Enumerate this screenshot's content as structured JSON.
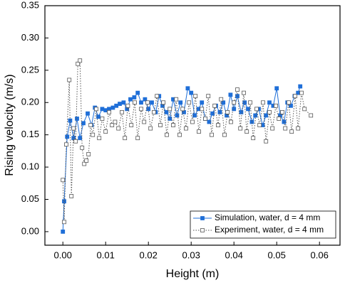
{
  "chart_data": {
    "type": "line",
    "xlabel": "Height (m)",
    "ylabel": "Rising velocity (m/s)",
    "xlim": [
      -0.0042,
      0.0648
    ],
    "ylim": [
      -0.021,
      0.35
    ],
    "xticks": [
      {
        "value": 0,
        "label": "0.00"
      },
      {
        "value": 0.01,
        "label": "0.01"
      },
      {
        "value": 0.02,
        "label": "0.02"
      },
      {
        "value": 0.03,
        "label": "0.03"
      },
      {
        "value": 0.04,
        "label": "0.04"
      },
      {
        "value": 0.05,
        "label": "0.05"
      },
      {
        "value": 0.06,
        "label": "0.06"
      }
    ],
    "yticks": [
      {
        "value": 0,
        "label": "0.00"
      },
      {
        "value": 0.05,
        "label": "0.05"
      },
      {
        "value": 0.1,
        "label": "0.10"
      },
      {
        "value": 0.15,
        "label": "0.15"
      },
      {
        "value": 0.2,
        "label": "0.20"
      },
      {
        "value": 0.25,
        "label": "0.25"
      },
      {
        "value": 0.3,
        "label": "0.30"
      },
      {
        "value": 0.35,
        "label": "0.35"
      }
    ],
    "legend": "lower right",
    "series": [
      {
        "name": "Simulation,  water, d = 4 mm",
        "color": "#1f6fd8",
        "line": "solid",
        "marker": "filled-square",
        "x": [
          0,
          0.0003,
          0.001,
          0.0017,
          0.0025,
          0.0033,
          0.004,
          0.0048,
          0.0058,
          0.0067,
          0.0075,
          0.0083,
          0.0092,
          0.01,
          0.0108,
          0.0117,
          0.0125,
          0.0133,
          0.0142,
          0.015,
          0.0158,
          0.0167,
          0.0175,
          0.0183,
          0.0192,
          0.02,
          0.0208,
          0.0217,
          0.0225,
          0.0233,
          0.0242,
          0.025,
          0.0258,
          0.0267,
          0.0275,
          0.0283,
          0.0292,
          0.03,
          0.0308,
          0.0317,
          0.0325,
          0.0333,
          0.0342,
          0.035,
          0.0358,
          0.0367,
          0.0375,
          0.0383,
          0.0392,
          0.04,
          0.0408,
          0.0417,
          0.0425,
          0.0433,
          0.0442,
          0.045,
          0.0458,
          0.0467,
          0.0475,
          0.0483,
          0.0492,
          0.05,
          0.0508,
          0.0517,
          0.0525,
          0.0533,
          0.0542,
          0.055,
          0.0555
        ],
        "values": [
          0,
          0.047,
          0.147,
          0.172,
          0.145,
          0.175,
          0.145,
          0.168,
          0.183,
          0.165,
          0.192,
          0.178,
          0.19,
          0.188,
          0.19,
          0.192,
          0.195,
          0.198,
          0.2,
          0.19,
          0.205,
          0.208,
          0.215,
          0.2,
          0.205,
          0.19,
          0.2,
          0.185,
          0.21,
          0.195,
          0.185,
          0.175,
          0.205,
          0.18,
          0.2,
          0.185,
          0.222,
          0.215,
          0.18,
          0.19,
          0.2,
          0.175,
          0.17,
          0.183,
          0.195,
          0.185,
          0.2,
          0.18,
          0.212,
          0.19,
          0.21,
          0.185,
          0.2,
          0.19,
          0.17,
          0.18,
          0.19,
          0.165,
          0.18,
          0.2,
          0.195,
          0.222,
          0.18,
          0.17,
          0.2,
          0.195,
          0.21,
          0.215,
          0.225
        ]
      },
      {
        "name": "Experiment, water, d = 4 mm",
        "color": "#555555",
        "line": "dotted",
        "marker": "open-square",
        "x": [
          0,
          0.0003,
          0.0008,
          0.0015,
          0.002,
          0.0025,
          0.003,
          0.0035,
          0.004,
          0.0045,
          0.005,
          0.0055,
          0.006,
          0.0065,
          0.007,
          0.0078,
          0.0085,
          0.0092,
          0.01,
          0.0108,
          0.0115,
          0.0122,
          0.013,
          0.0138,
          0.0145,
          0.0152,
          0.016,
          0.0168,
          0.0175,
          0.0183,
          0.019,
          0.0198,
          0.0205,
          0.0213,
          0.022,
          0.0228,
          0.0235,
          0.0243,
          0.025,
          0.0258,
          0.0265,
          0.0273,
          0.028,
          0.0288,
          0.0295,
          0.0303,
          0.031,
          0.0318,
          0.0325,
          0.0333,
          0.034,
          0.0348,
          0.0355,
          0.0363,
          0.037,
          0.0378,
          0.0385,
          0.0393,
          0.04,
          0.0408,
          0.0415,
          0.0423,
          0.043,
          0.0438,
          0.0445,
          0.0453,
          0.046,
          0.0468,
          0.0475,
          0.0483,
          0.049,
          0.0498,
          0.0505,
          0.0513,
          0.052,
          0.0528,
          0.0535,
          0.0543,
          0.055,
          0.0558,
          0.0565,
          0.058
        ],
        "values": [
          0.08,
          0.015,
          0.135,
          0.235,
          0.055,
          0.16,
          0.14,
          0.26,
          0.265,
          0.13,
          0.105,
          0.11,
          0.12,
          0.165,
          0.15,
          0.19,
          0.145,
          0.175,
          0.155,
          0.185,
          0.165,
          0.17,
          0.16,
          0.185,
          0.145,
          0.195,
          0.165,
          0.2,
          0.145,
          0.19,
          0.17,
          0.2,
          0.16,
          0.185,
          0.21,
          0.165,
          0.2,
          0.15,
          0.19,
          0.165,
          0.205,
          0.15,
          0.19,
          0.16,
          0.2,
          0.17,
          0.21,
          0.155,
          0.19,
          0.175,
          0.21,
          0.15,
          0.195,
          0.165,
          0.205,
          0.15,
          0.185,
          0.17,
          0.2,
          0.22,
          0.16,
          0.215,
          0.155,
          0.2,
          0.145,
          0.19,
          0.165,
          0.2,
          0.14,
          0.185,
          0.16,
          0.195,
          0.175,
          0.185,
          0.16,
          0.2,
          0.155,
          0.21,
          0.16,
          0.215,
          0.19,
          0.18
        ]
      }
    ]
  }
}
